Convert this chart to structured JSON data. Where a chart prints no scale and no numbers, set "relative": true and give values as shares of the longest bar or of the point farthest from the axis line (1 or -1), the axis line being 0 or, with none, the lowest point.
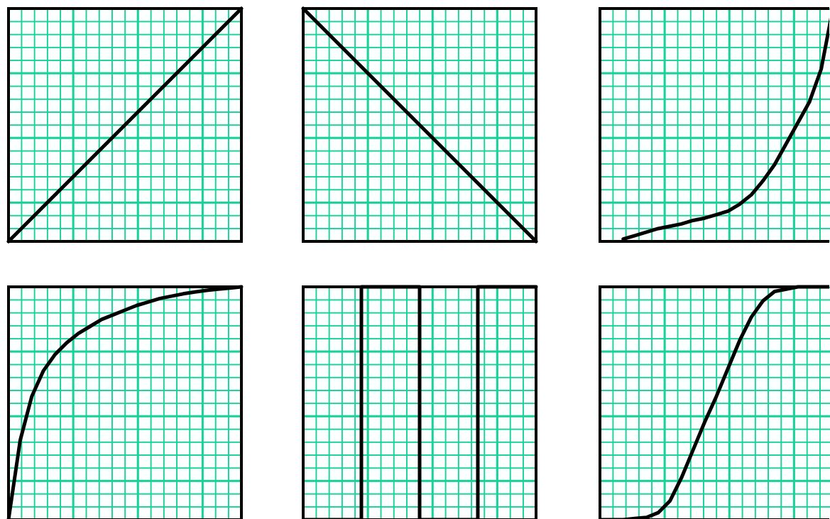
{
  "chart_data": [
    {
      "type": "line",
      "relative": true,
      "categories": [
        null,
        null
      ],
      "series": [
        {
          "color": "#000000",
          "values": [
            0,
            1
          ]
        }
      ]
    },
    {
      "type": "line",
      "relative": true,
      "categories": [
        null,
        null
      ],
      "series": [
        {
          "color": "#000000",
          "values": [
            1,
            0
          ]
        }
      ]
    },
    {
      "type": "line",
      "relative": true,
      "categories": [
        null,
        null,
        null,
        null,
        null,
        null,
        null,
        null,
        null,
        null,
        null,
        null,
        null,
        null,
        null,
        null,
        null,
        null,
        null,
        null,
        null
      ],
      "series": [
        {
          "color": "#000000",
          "values": [
            null,
            null,
            0.01,
            0.025,
            0.04,
            0.055,
            0.065,
            0.075,
            0.09,
            0.1,
            0.115,
            0.13,
            0.16,
            0.2,
            0.26,
            0.33,
            0.42,
            0.51,
            0.6,
            0.74,
            1
          ]
        }
      ]
    },
    {
      "type": "line",
      "relative": true,
      "categories": [
        null,
        null,
        null,
        null,
        null,
        null,
        null,
        null,
        null,
        null,
        null,
        null,
        null,
        null,
        null,
        null,
        null,
        null,
        null,
        null,
        null
      ],
      "series": [
        {
          "color": "#000000",
          "values": [
            0,
            0.34,
            0.53,
            0.64,
            0.71,
            0.76,
            0.8,
            0.83,
            0.86,
            0.88,
            0.9,
            0.92,
            0.935,
            0.95,
            0.96,
            0.97,
            0.978,
            0.985,
            0.99,
            0.995,
            1
          ]
        }
      ]
    },
    {
      "type": "step",
      "relative": true,
      "categories": [
        null,
        null,
        null,
        null,
        null,
        null,
        null,
        null,
        null,
        null,
        null,
        null,
        null,
        null,
        null,
        null,
        null,
        null,
        null,
        null,
        null,
        null,
        null,
        null,
        null,
        null,
        null,
        null,
        null,
        null,
        null,
        null,
        null,
        null,
        null,
        null,
        null,
        null,
        null,
        null,
        null
      ],
      "series": [
        {
          "color": "#000000",
          "values": [
            0,
            0,
            0,
            0,
            0,
            0,
            0,
            0,
            0,
            0,
            1,
            1,
            1,
            1,
            1,
            1,
            1,
            1,
            1,
            1,
            0,
            0,
            0,
            0,
            0,
            0,
            0,
            0,
            0,
            0,
            1,
            1,
            1,
            1,
            1,
            1,
            1,
            1,
            1,
            1,
            1
          ]
        }
      ]
    },
    {
      "type": "line",
      "relative": true,
      "categories": [
        null,
        null,
        null,
        null,
        null,
        null,
        null,
        null,
        null,
        null,
        null,
        null,
        null,
        null,
        null,
        null,
        null,
        null,
        null,
        null,
        null
      ],
      "series": [
        {
          "color": "#000000",
          "values": [
            0,
            0,
            0,
            0.005,
            0.01,
            0.03,
            0.08,
            0.18,
            0.3,
            0.42,
            0.53,
            0.65,
            0.77,
            0.87,
            0.94,
            0.98,
            0.99,
            1,
            1,
            1,
            1
          ]
        }
      ]
    }
  ]
}
